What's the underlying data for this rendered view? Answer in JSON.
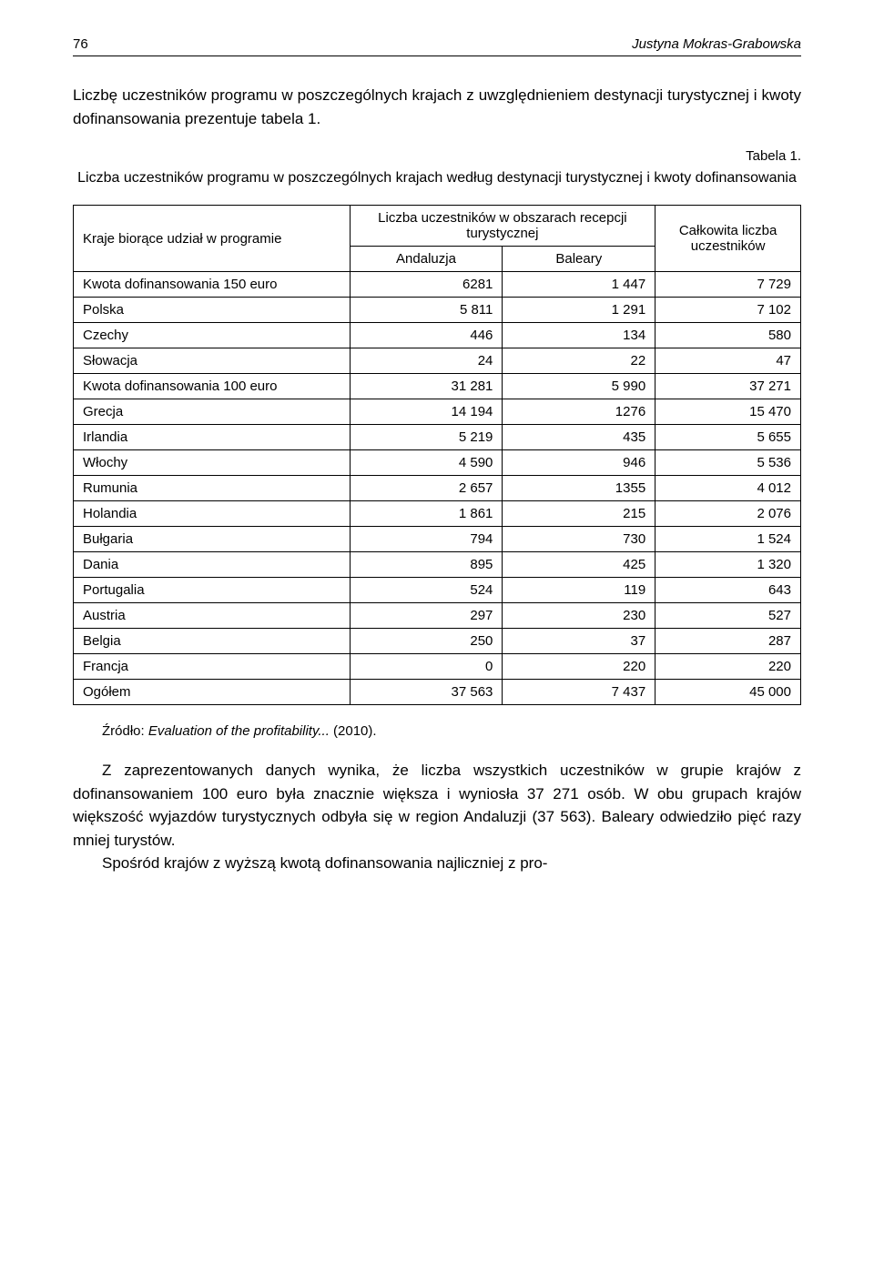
{
  "page_number": "76",
  "author_name": "Justyna Mokras-Grabowska",
  "intro_paragraph": "Liczbę uczestników programu w poszczególnych krajach z uwzględnieniem destynacji turystycznej i kwoty dofinansowania prezentuje tabela 1.",
  "table_label": "Tabela 1.",
  "table_caption": "Liczba uczestników programu w poszczególnych krajach według destynacji turystycznej i kwoty dofinansowania",
  "table": {
    "header": {
      "col1": "Kraje biorące udział w programie",
      "col2_group": "Liczba uczestników w obszarach recepcji turystycznej",
      "col2_a": "Andaluzja",
      "col2_b": "Baleary",
      "col3": "Całkowita liczba uczestników"
    },
    "rows": [
      {
        "label": "Kwota dofinansowania 150 euro",
        "a": "6281",
        "b": "1 447",
        "c": "7 729"
      },
      {
        "label": "Polska",
        "a": "5 811",
        "b": "1 291",
        "c": "7 102"
      },
      {
        "label": "Czechy",
        "a": "446",
        "b": "134",
        "c": "580"
      },
      {
        "label": "Słowacja",
        "a": "24",
        "b": "22",
        "c": "47"
      },
      {
        "label": "Kwota dofinansowania 100 euro",
        "a": "31 281",
        "b": "5 990",
        "c": "37 271"
      },
      {
        "label": "Grecja",
        "a": "14 194",
        "b": "1276",
        "c": "15 470"
      },
      {
        "label": "Irlandia",
        "a": "5 219",
        "b": "435",
        "c": "5 655"
      },
      {
        "label": "Włochy",
        "a": "4 590",
        "b": "946",
        "c": "5 536"
      },
      {
        "label": "Rumunia",
        "a": "2 657",
        "b": "1355",
        "c": "4 012"
      },
      {
        "label": "Holandia",
        "a": "1 861",
        "b": "215",
        "c": "2 076"
      },
      {
        "label": "Bułgaria",
        "a": "794",
        "b": "730",
        "c": "1 524"
      },
      {
        "label": "Dania",
        "a": "895",
        "b": "425",
        "c": "1 320"
      },
      {
        "label": "Portugalia",
        "a": "524",
        "b": "119",
        "c": "643"
      },
      {
        "label": "Austria",
        "a": "297",
        "b": "230",
        "c": "527"
      },
      {
        "label": "Belgia",
        "a": "250",
        "b": "37",
        "c": "287"
      },
      {
        "label": "Francja",
        "a": "0",
        "b": "220",
        "c": "220"
      },
      {
        "label": "Ogółem",
        "a": "37 563",
        "b": "7 437",
        "c": "45 000"
      }
    ]
  },
  "source_prefix": "Źródło: ",
  "source_italic": "Evaluation of the profitability...",
  "source_suffix": " (2010).",
  "body_p1": "Z zaprezentowanych danych wynika, że liczba wszystkich uczestników w grupie krajów z dofinansowaniem 100 euro była znacznie większa i wyniosła 37 271 osób. W obu grupach krajów większość wyjazdów turystycznych odbyła się w region Andaluzji (37 563). Baleary odwiedziło pięć razy mniej turystów.",
  "body_p2": "Spośród krajów z wyższą kwotą dofinansowania najliczniej z pro-"
}
